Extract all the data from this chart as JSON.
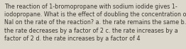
{
  "text": "The reaction of 1-bromopropane with sodium iodide gives 1-\niodopropane. What is the effect of doubling the concentration of\nNaI on the rate of the reaction? a. the rate remains the same b.\nthe rate decreases by a factor of 2 c. the rate increases by a\nfactor of 2 d. the rate increases by a factor of 4",
  "background_color": "#ddd8cc",
  "text_color": "#3a3530",
  "font_size": 5.8
}
